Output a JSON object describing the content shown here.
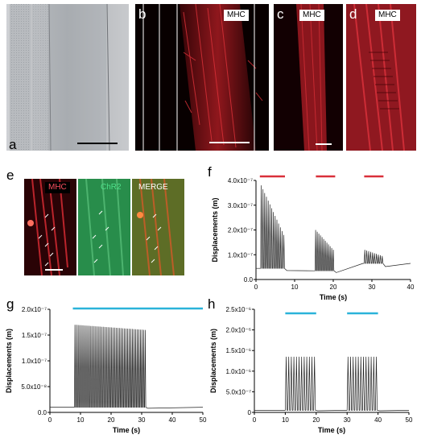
{
  "figure": {
    "panels": {
      "a": {
        "label": "a"
      },
      "b": {
        "label": "b",
        "stain": "MHC"
      },
      "c": {
        "label": "c",
        "stain": "MHC"
      },
      "d": {
        "label": "d",
        "stain": "MHC"
      },
      "e": {
        "label": "e",
        "sub": [
          "MHC",
          "ChR2",
          "MERGE"
        ]
      },
      "f": {
        "label": "f"
      },
      "g": {
        "label": "g"
      },
      "h": {
        "label": "h"
      }
    },
    "colors": {
      "red_bar": "#d9303a",
      "blue_bar": "#2bb3d9",
      "mhc_red": "#d2202a",
      "chr2_green": "#2f9a54"
    }
  },
  "chart_data": [
    {
      "panel": "f",
      "type": "line",
      "xlabel": "Time (s)",
      "ylabel": "Displacements (m)",
      "xlim": [
        0,
        40
      ],
      "ylim": [
        0,
        4e-07
      ],
      "xticks": [
        "0",
        "10",
        "20",
        "30",
        "40"
      ],
      "yticks": [
        "0.0",
        "1.0x10⁻⁷",
        "2.0x10⁻⁷",
        "3.0x10⁻⁷",
        "4.0x10⁻⁷"
      ],
      "stim_bars": [
        [
          1,
          7.5
        ],
        [
          15.5,
          20.5
        ],
        [
          28,
          33
        ]
      ],
      "bursts": [
        {
          "start": 1.2,
          "end": 7.5,
          "n": 14,
          "baseline": 4.5e-08,
          "peak_start": 3.8e-07,
          "peak_end": 1.8e-07
        },
        {
          "start": 15.3,
          "end": 20.3,
          "n": 12,
          "baseline": 3.5e-08,
          "peak_start": 2e-07,
          "peak_end": 1.2e-07
        },
        {
          "start": 28.0,
          "end": 33.0,
          "n": 10,
          "baseline": 6.5e-08,
          "peak_start": 1.2e-07,
          "peak_end": 9.5e-08
        }
      ]
    },
    {
      "panel": "g",
      "type": "line",
      "xlabel": "Time (s)",
      "ylabel": "Displacements (m)",
      "xlim": [
        0,
        50
      ],
      "ylim": [
        0,
        2e-07
      ],
      "xticks": [
        "0",
        "10",
        "20",
        "30",
        "40",
        "50"
      ],
      "yticks": [
        "0.0",
        "5.0x10⁻⁸",
        "1.0x10⁻⁷",
        "1.5x10⁻⁷",
        "2.0x10⁻⁷"
      ],
      "stim_bars": [
        [
          7.5,
          50
        ]
      ],
      "bursts": [
        {
          "start": 8.0,
          "end": 31.5,
          "n": 45,
          "baseline": 1e-08,
          "peak_start": 1.7e-07,
          "peak_end": 1.6e-07,
          "tail_end": 35.0
        }
      ]
    },
    {
      "panel": "h",
      "type": "line",
      "xlabel": "Time (s)",
      "ylabel": "Displacements (m)",
      "xlim": [
        0,
        50
      ],
      "ylim": [
        0,
        2.5e-06
      ],
      "xticks": [
        "0",
        "10",
        "20",
        "30",
        "40",
        "50"
      ],
      "yticks": [
        "0",
        "5.0x10⁻⁷",
        "1.0x10⁻⁶",
        "1.5x10⁻⁶",
        "2.0x10⁻⁶",
        "2.5x10⁻⁶"
      ],
      "stim_bars": [
        [
          10,
          20
        ],
        [
          30,
          40
        ]
      ],
      "bursts": [
        {
          "start": 10.0,
          "end": 20.0,
          "n": 12,
          "baseline": 5e-08,
          "peak_start": 1.35e-06,
          "peak_end": 1.35e-06
        },
        {
          "start": 30.0,
          "end": 40.0,
          "n": 12,
          "baseline": 5e-08,
          "peak_start": 1.35e-06,
          "peak_end": 1.35e-06
        }
      ]
    }
  ]
}
